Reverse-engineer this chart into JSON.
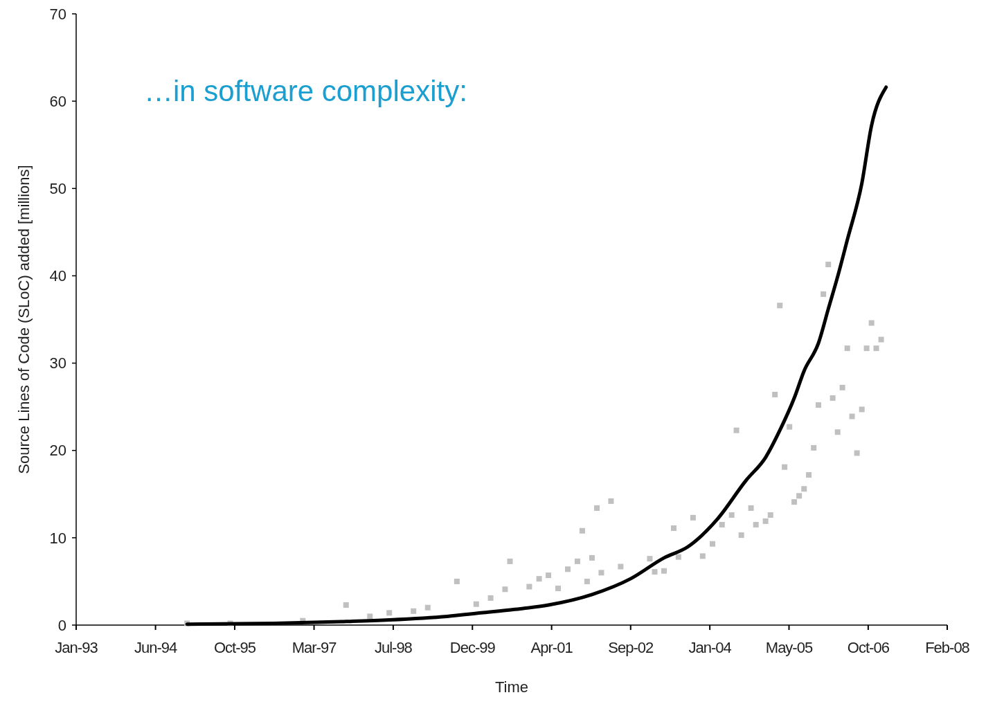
{
  "chart_data": {
    "type": "scatter",
    "title": "…in software complexity:",
    "xlabel": "Time",
    "ylabel": "Source Lines of Code (SLoC) added [millions]",
    "xlim": [
      "1993-01-31",
      "2008-02-22"
    ],
    "xticks": [
      {
        "value": "1993-01-31",
        "label": "Jan-93"
      },
      {
        "value": "1994-06-16",
        "label": "Jun-94"
      },
      {
        "value": "1995-10-29",
        "label": "Oct-95"
      },
      {
        "value": "1997-03-13",
        "label": "Mar-97"
      },
      {
        "value": "1998-07-26",
        "label": "Jul-98"
      },
      {
        "value": "1999-12-08",
        "label": "Dec-99"
      },
      {
        "value": "2001-04-21",
        "label": "Apr-01"
      },
      {
        "value": "2002-09-02",
        "label": "Sep-02"
      },
      {
        "value": "2004-01-15",
        "label": "Jan-04"
      },
      {
        "value": "2005-05-29",
        "label": "May-05"
      },
      {
        "value": "2006-10-11",
        "label": "Oct-06"
      },
      {
        "value": "2008-02-22",
        "label": "Feb-08"
      }
    ],
    "ylim": [
      0,
      70
    ],
    "yticks": [
      0,
      10,
      20,
      30,
      40,
      50,
      60,
      70
    ],
    "grid": false,
    "series": [
      {
        "color": "#c0c0c0",
        "marker": "square",
        "x": [
          "1995-01",
          "1995-10",
          "1997-01",
          "1997-10",
          "1998-03",
          "1998-07",
          "1998-12",
          "1999-03",
          "1999-09",
          "2000-01",
          "2000-04",
          "2000-07",
          "2000-08",
          "2000-12",
          "2001-02",
          "2001-04",
          "2001-06",
          "2001-08",
          "2001-10",
          "2001-11",
          "2001-12",
          "2002-01",
          "2002-02",
          "2002-05",
          "2002-03",
          "2002-07",
          "2003-01",
          "2003-02",
          "2003-04",
          "2003-06",
          "2003-07",
          "2003-10",
          "2003-12",
          "2004-02",
          "2004-04",
          "2004-06",
          "2004-07",
          "2004-08",
          "2004-10",
          "2004-11",
          "2005-01",
          "2005-02",
          "2005-03",
          "2005-04",
          "2005-05",
          "2005-06",
          "2005-07",
          "2005-08",
          "2005-09",
          "2005-10",
          "2005-11",
          "2005-12",
          "2006-01",
          "2006-02",
          "2006-03",
          "2006-04",
          "2006-05",
          "2006-06",
          "2006-07",
          "2006-08",
          "2006-09",
          "2006-10",
          "2006-11",
          "2006-12",
          "2007-01"
        ],
        "values": [
          0.2,
          0.2,
          0.5,
          2.3,
          1.0,
          1.4,
          1.6,
          2.0,
          5.0,
          2.4,
          3.1,
          4.1,
          7.3,
          4.4,
          5.3,
          5.7,
          4.2,
          6.4,
          7.3,
          10.8,
          5.0,
          7.7,
          13.4,
          14.2,
          6.0,
          6.7,
          7.6,
          6.1,
          6.2,
          11.1,
          7.8,
          12.3,
          7.9,
          9.3,
          11.5,
          12.6,
          22.3,
          10.3,
          13.4,
          11.5,
          11.9,
          12.6,
          26.4,
          36.6,
          18.1,
          22.7,
          14.1,
          14.8,
          15.6,
          17.2,
          20.3,
          25.2,
          37.9,
          41.3,
          26.0,
          22.1,
          27.2,
          31.7,
          23.9,
          19.7,
          24.7,
          31.7,
          34.6,
          31.7,
          32.7
        ]
      },
      {
        "type": "line",
        "color": "#000000",
        "marker": "none",
        "line_style": "solid",
        "x": [
          "1995-01",
          "1996-07",
          "1997-09",
          "1998-07",
          "1999-07",
          "2000-02",
          "2000-09",
          "2001-04",
          "2002-01",
          "2002-09",
          "2003-04",
          "2003-09",
          "2004-03",
          "2004-09",
          "2005-01",
          "2005-04",
          "2005-07",
          "2005-09",
          "2005-12",
          "2006-02",
          "2006-04",
          "2006-06",
          "2006-09",
          "2006-11",
          "2007-02"
        ],
        "values": [
          0.1,
          0.2,
          0.4,
          0.6,
          1.0,
          1.4,
          1.8,
          2.3,
          3.5,
          5.3,
          7.7,
          9.0,
          12.1,
          16.6,
          19.2,
          22.3,
          26.0,
          29.1,
          32.3,
          36.2,
          39.9,
          44.1,
          50.6,
          57.2,
          61.6
        ]
      }
    ]
  }
}
